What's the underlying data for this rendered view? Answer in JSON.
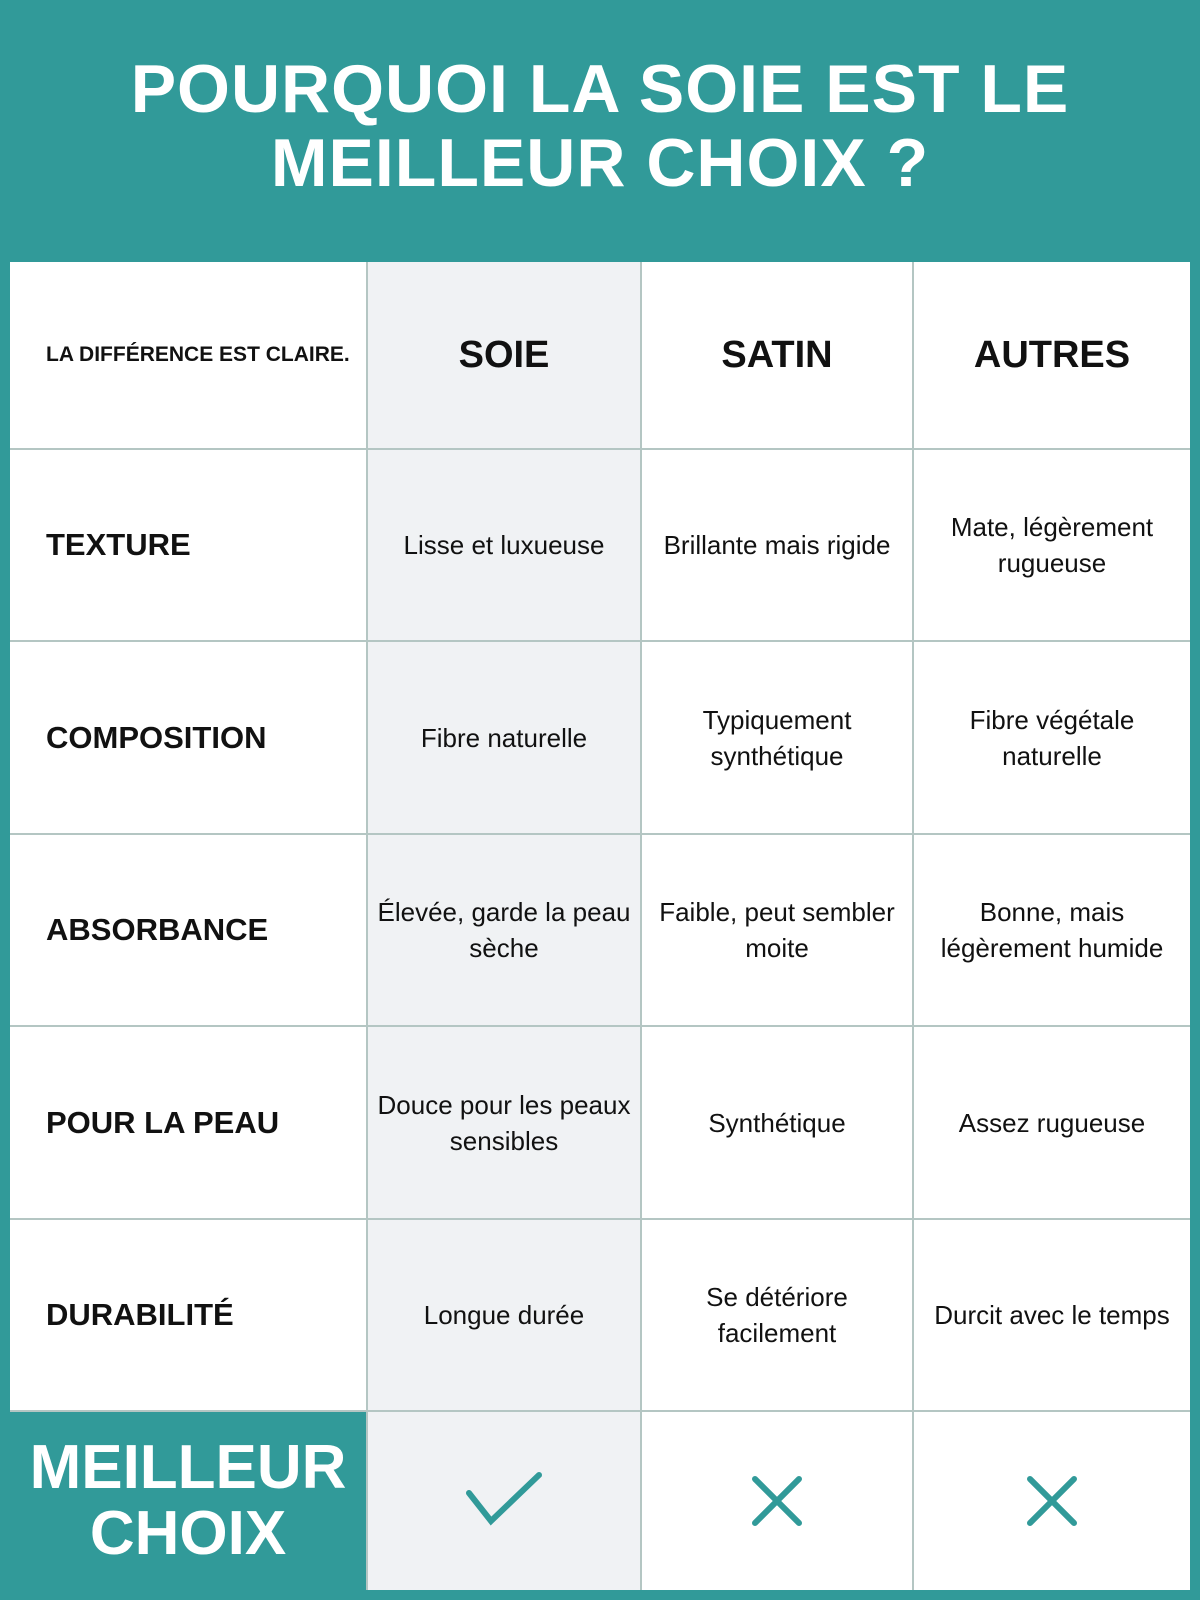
{
  "title": "POURQUOI LA SOIE EST LE MEILLEUR CHOIX ?",
  "table": {
    "corner_label": "LA DIFFÉRENCE EST CLAIRE.",
    "columns": [
      "SOIE",
      "SATIN",
      "AUTRES"
    ],
    "rows": [
      {
        "label": "TEXTURE",
        "values": [
          "Lisse et luxueuse",
          "Brillante mais rigide",
          "Mate, légèrement rugueuse"
        ]
      },
      {
        "label": "COMPOSITION",
        "values": [
          "Fibre naturelle",
          "Typiquement synthétique",
          "Fibre végétale naturelle"
        ]
      },
      {
        "label": "ABSORBANCE",
        "values": [
          "Élevée, garde la peau sèche",
          "Faible, peut sembler moite",
          "Bonne, mais légèrement humide"
        ]
      },
      {
        "label": "POUR LA PEAU",
        "values": [
          "Douce pour les peaux sensibles",
          "Synthétique",
          "Assez rugueuse"
        ]
      },
      {
        "label": "DURABILITÉ",
        "values": [
          "Longue durée",
          "Se détériore facilement",
          "Durcit avec le temps"
        ]
      }
    ],
    "best_choice": {
      "label": "MEILLEUR CHOIX",
      "marks": [
        "check-icon",
        "cross-icon",
        "cross-icon"
      ]
    }
  },
  "colors": {
    "accent": "#319a99",
    "highlight_column": "#f0f2f4",
    "grid": "#b4c6c3"
  }
}
